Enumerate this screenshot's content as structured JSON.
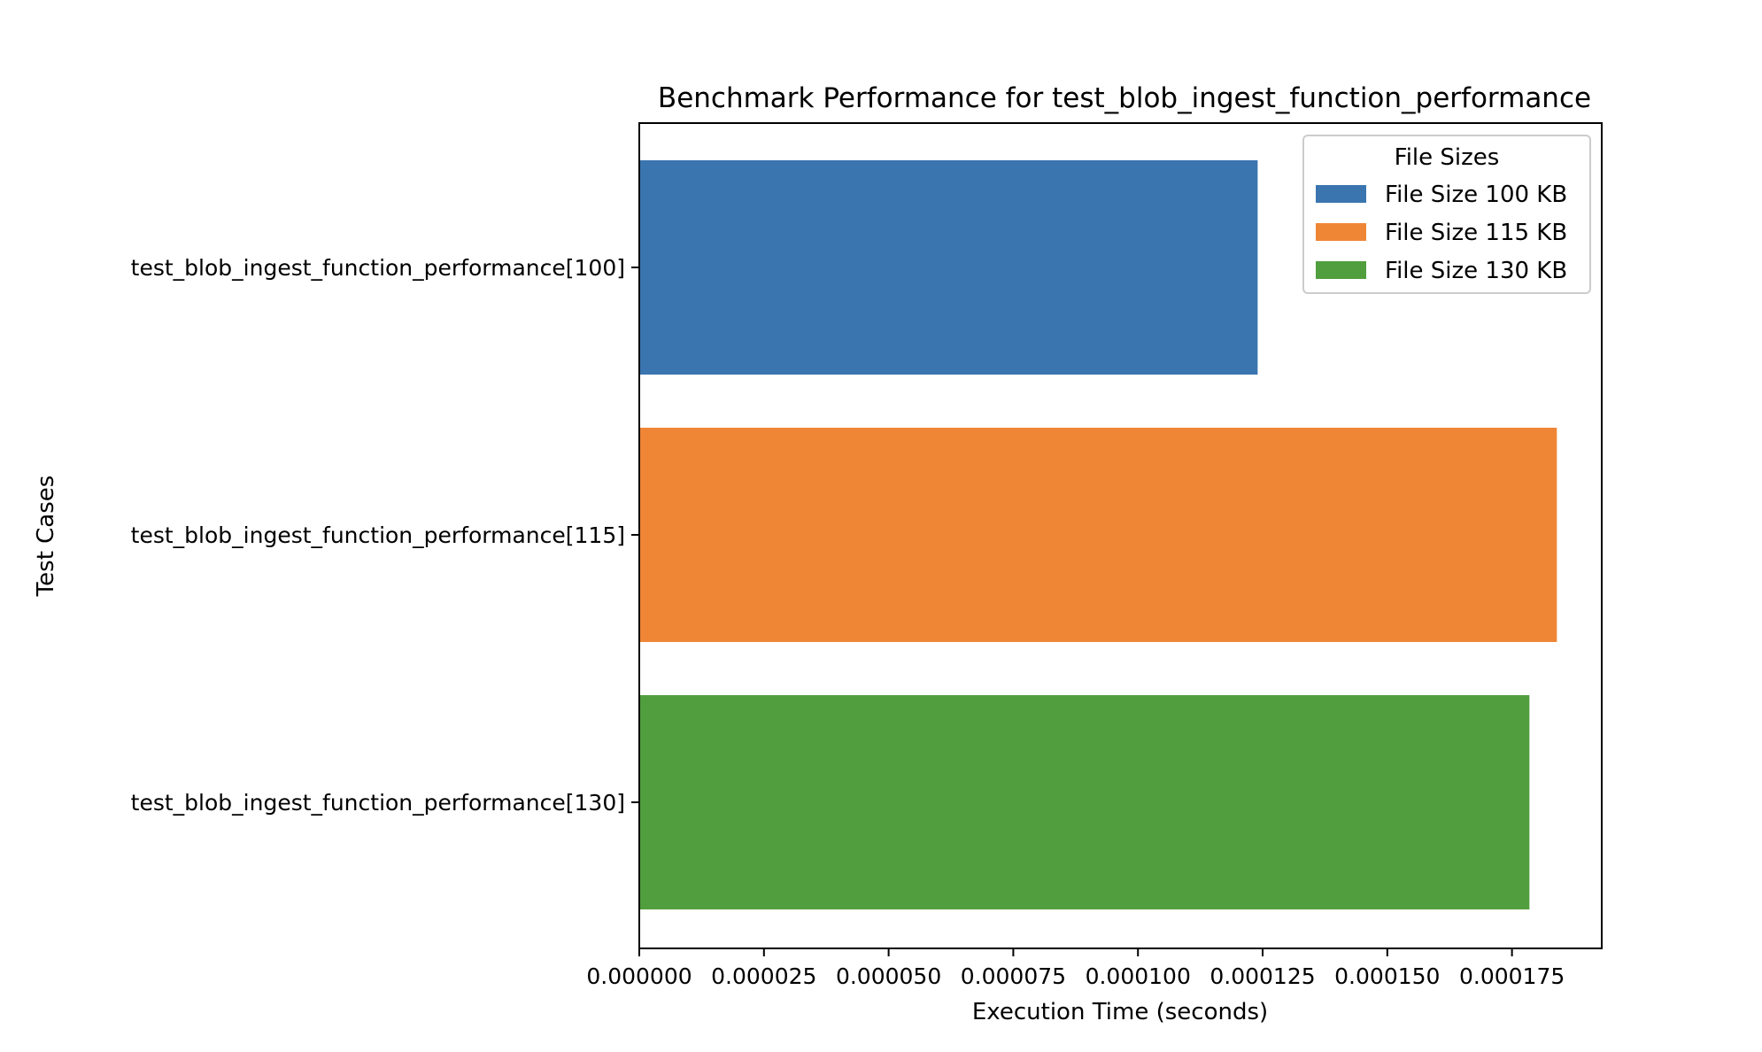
{
  "chart_data": {
    "type": "bar",
    "orientation": "horizontal",
    "title": "Benchmark Performance for test_blob_ingest_function_performance",
    "xlabel": "Execution Time (seconds)",
    "ylabel": "Test Cases",
    "categories": [
      "test_blob_ingest_function_performance[100]",
      "test_blob_ingest_function_performance[115]",
      "test_blob_ingest_function_performance[130]"
    ],
    "values": [
      0.000124,
      0.000184,
      0.0001785
    ],
    "colors": [
      "#3a75b0",
      "#ef8636",
      "#519e3e"
    ],
    "xlim": [
      0,
      0.000193
    ],
    "xticks": [
      0,
      2.5e-05,
      5e-05,
      7.5e-05,
      0.0001,
      0.000125,
      0.00015,
      0.000175
    ],
    "xtick_labels": [
      "0.000000",
      "0.000025",
      "0.000050",
      "0.000075",
      "0.000100",
      "0.000125",
      "0.000150",
      "0.000175"
    ],
    "grid": false,
    "legend": {
      "title": "File Sizes",
      "placement": "top-right",
      "entries": [
        "File Size 100 KB",
        "File Size 115 KB",
        "File Size 130 KB"
      ]
    }
  }
}
